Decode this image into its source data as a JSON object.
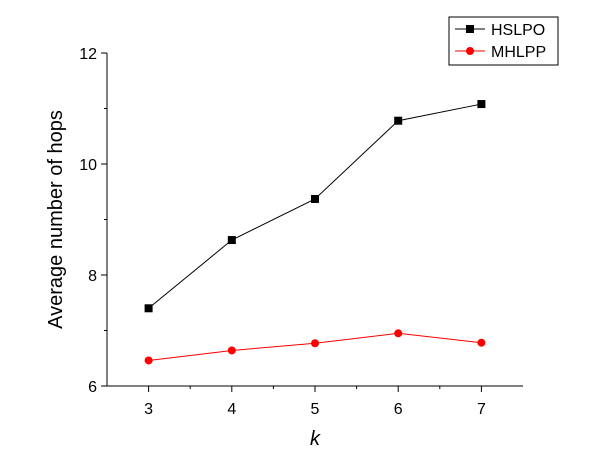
{
  "chart_data": {
    "type": "line",
    "title": "",
    "xlabel": "k",
    "ylabel": "Average number of hops",
    "x": [
      3,
      4,
      5,
      6,
      7
    ],
    "xlim": [
      2.5,
      7.5
    ],
    "ylim": [
      6,
      12
    ],
    "x_ticks": [
      3,
      4,
      5,
      6,
      7
    ],
    "y_ticks": [
      6,
      8,
      10,
      12
    ],
    "grid": false,
    "legend_position": "top-right",
    "series": [
      {
        "name": "HSLPO",
        "values": [
          7.4,
          8.63,
          9.37,
          10.78,
          11.08
        ],
        "color": "#000000",
        "marker": "square"
      },
      {
        "name": "MHLPP",
        "values": [
          6.46,
          6.64,
          6.77,
          6.95,
          6.78
        ],
        "color": "#ff0000",
        "marker": "circle"
      }
    ]
  }
}
